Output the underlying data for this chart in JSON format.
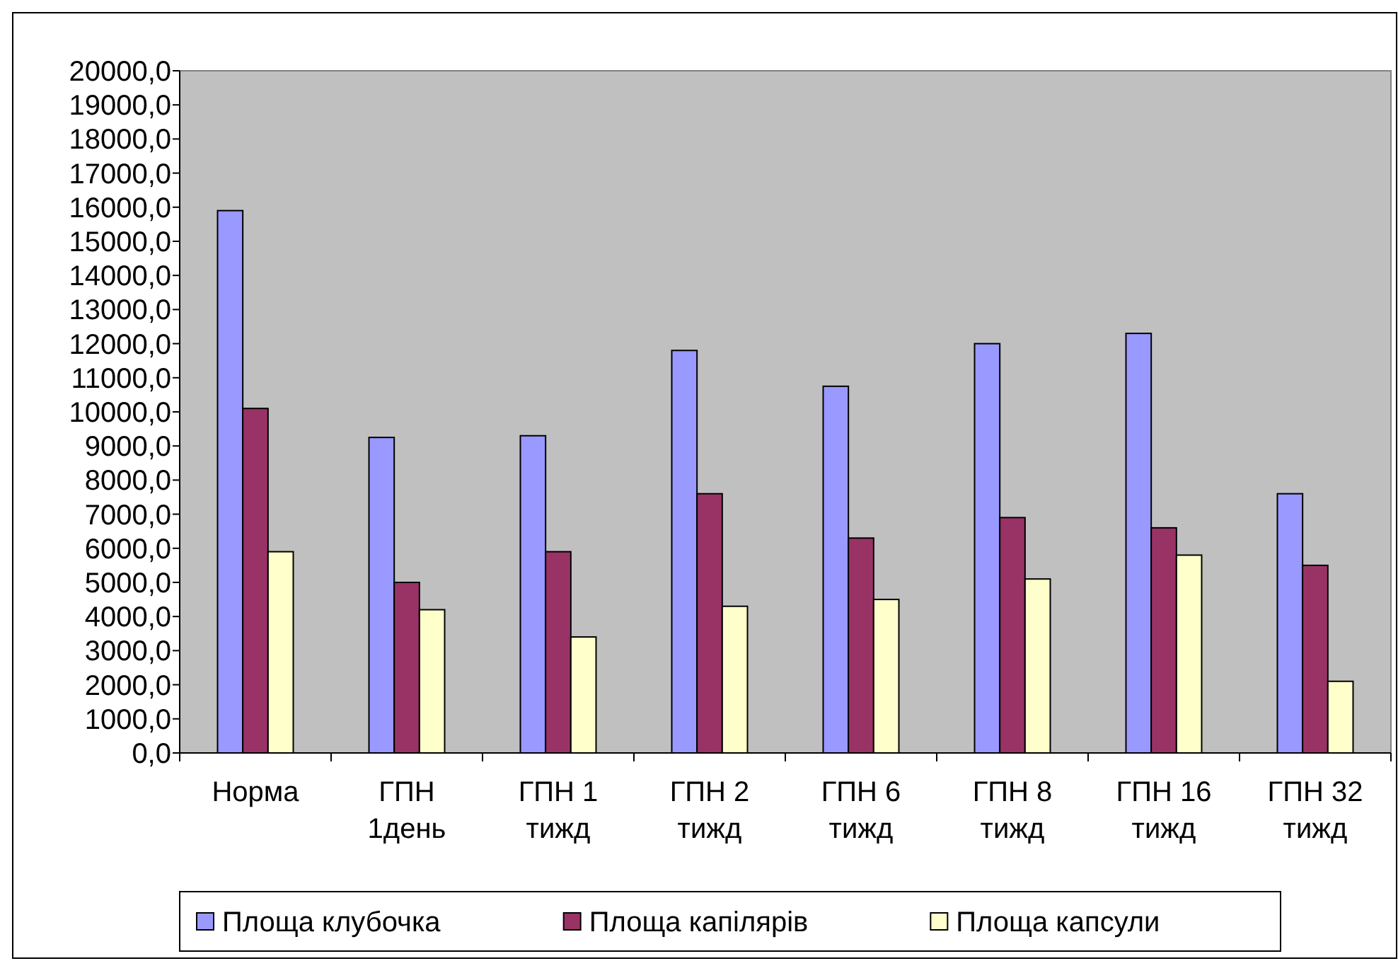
{
  "chart_data": {
    "type": "bar",
    "categories": [
      "Норма",
      "ГПН\n1день",
      "ГПН  1\nтижд",
      "ГПН 2\nтижд",
      "ГПН 6\nтижд",
      "ГПН 8\nтижд",
      "ГПН 16\nтижд",
      "ГПН 32\nтижд"
    ],
    "series": [
      {
        "name": "Площа клубочка",
        "color": "#9999ff",
        "values": [
          15900,
          9250,
          9300,
          11800,
          10750,
          12000,
          12300,
          7600
        ]
      },
      {
        "name": "Площа капілярів",
        "color": "#993366",
        "values": [
          10100,
          5000,
          5900,
          7600,
          6300,
          6900,
          6600,
          5500
        ]
      },
      {
        "name": "Площа капсули",
        "color": "#ffffcc",
        "values": [
          5900,
          4200,
          3400,
          4300,
          4500,
          5100,
          5800,
          2100
        ]
      }
    ],
    "ylim": [
      0,
      20000
    ],
    "yticks": [
      {
        "value": 0,
        "label": "0,0"
      },
      {
        "value": 1000,
        "label": "1000,0"
      },
      {
        "value": 2000,
        "label": "2000,0"
      },
      {
        "value": 3000,
        "label": "3000,0"
      },
      {
        "value": 4000,
        "label": "4000,0"
      },
      {
        "value": 5000,
        "label": "5000,0"
      },
      {
        "value": 6000,
        "label": "6000,0"
      },
      {
        "value": 7000,
        "label": "7000,0"
      },
      {
        "value": 8000,
        "label": "8000,0"
      },
      {
        "value": 9000,
        "label": "9000,0"
      },
      {
        "value": 10000,
        "label": "10000,0"
      },
      {
        "value": 11000,
        "label": "11000,0"
      },
      {
        "value": 12000,
        "label": "12000,0"
      },
      {
        "value": 13000,
        "label": "13000,0"
      },
      {
        "value": 14000,
        "label": "14000,0"
      },
      {
        "value": 15000,
        "label": "15000,0"
      },
      {
        "value": 16000,
        "label": "16000,0"
      },
      {
        "value": 17000,
        "label": "17000,0"
      },
      {
        "value": 18000,
        "label": "18000,0"
      },
      {
        "value": 19000,
        "label": "19000,0"
      },
      {
        "value": 20000,
        "label": "20000,0"
      }
    ],
    "legend": "bottom"
  }
}
